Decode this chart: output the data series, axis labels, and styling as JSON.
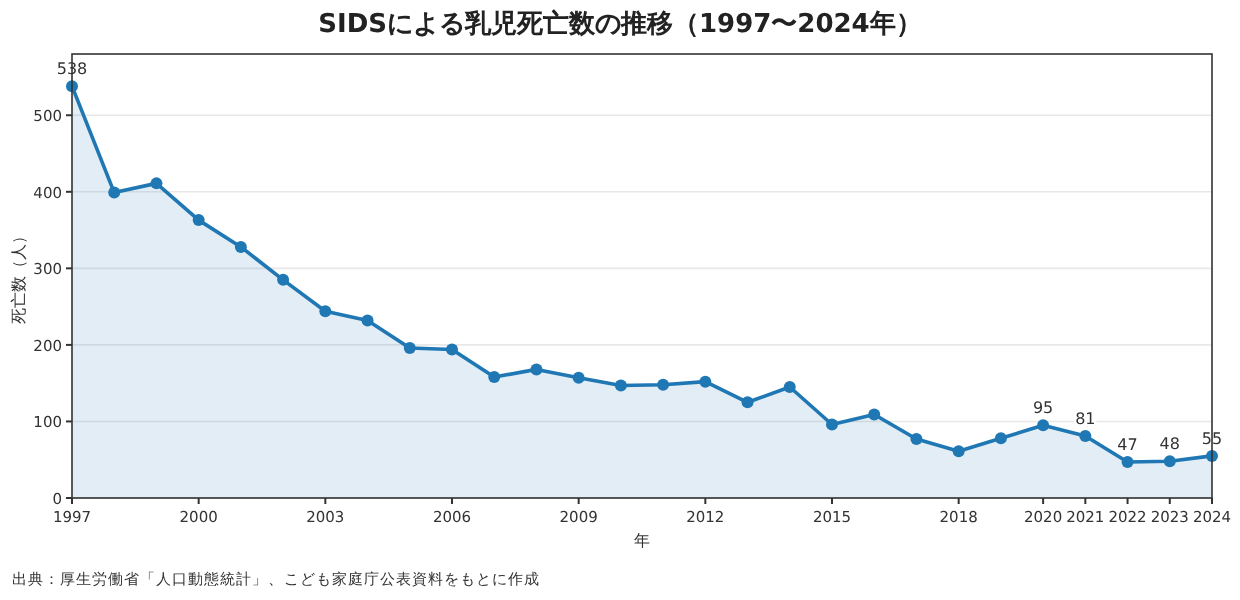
{
  "chart_data": {
    "type": "area",
    "title": "SIDSによる乳児死亡数の推移（1997〜2024年）",
    "xlabel": "年",
    "ylabel": "死亡数（人）",
    "x": [
      1997,
      1998,
      1999,
      2000,
      2001,
      2002,
      2003,
      2004,
      2005,
      2006,
      2007,
      2008,
      2009,
      2010,
      2011,
      2012,
      2013,
      2014,
      2015,
      2016,
      2017,
      2018,
      2019,
      2020,
      2021,
      2022,
      2023,
      2024
    ],
    "series": [
      {
        "color": "#1f77b4",
        "values": [
          538,
          399,
          411,
          363,
          328,
          285,
          244,
          232,
          196,
          194,
          158,
          168,
          157,
          147,
          148,
          152,
          125,
          145,
          96,
          109,
          77,
          61,
          78,
          95,
          81,
          47,
          48,
          55
        ],
        "value_labels": [
          "538",
          null,
          null,
          null,
          null,
          null,
          null,
          null,
          null,
          null,
          null,
          null,
          null,
          null,
          null,
          null,
          null,
          null,
          null,
          null,
          null,
          null,
          null,
          "95",
          "81",
          "47",
          "48",
          "55"
        ]
      }
    ],
    "xlim": [
      1997,
      2024
    ],
    "xticks": [
      1997,
      2000,
      2003,
      2006,
      2009,
      2012,
      2015,
      2018,
      2020,
      2021,
      2022,
      2023,
      2024
    ],
    "ylim": [
      0,
      580
    ],
    "yticks": [
      0,
      100,
      200,
      300,
      400,
      500
    ],
    "grid": "y",
    "marker": "circle",
    "line_style": "solid",
    "annotations": [
      "出典：厚生労働省「人口動態統計」、こども家庭庁公表資料をもとに作成"
    ]
  }
}
